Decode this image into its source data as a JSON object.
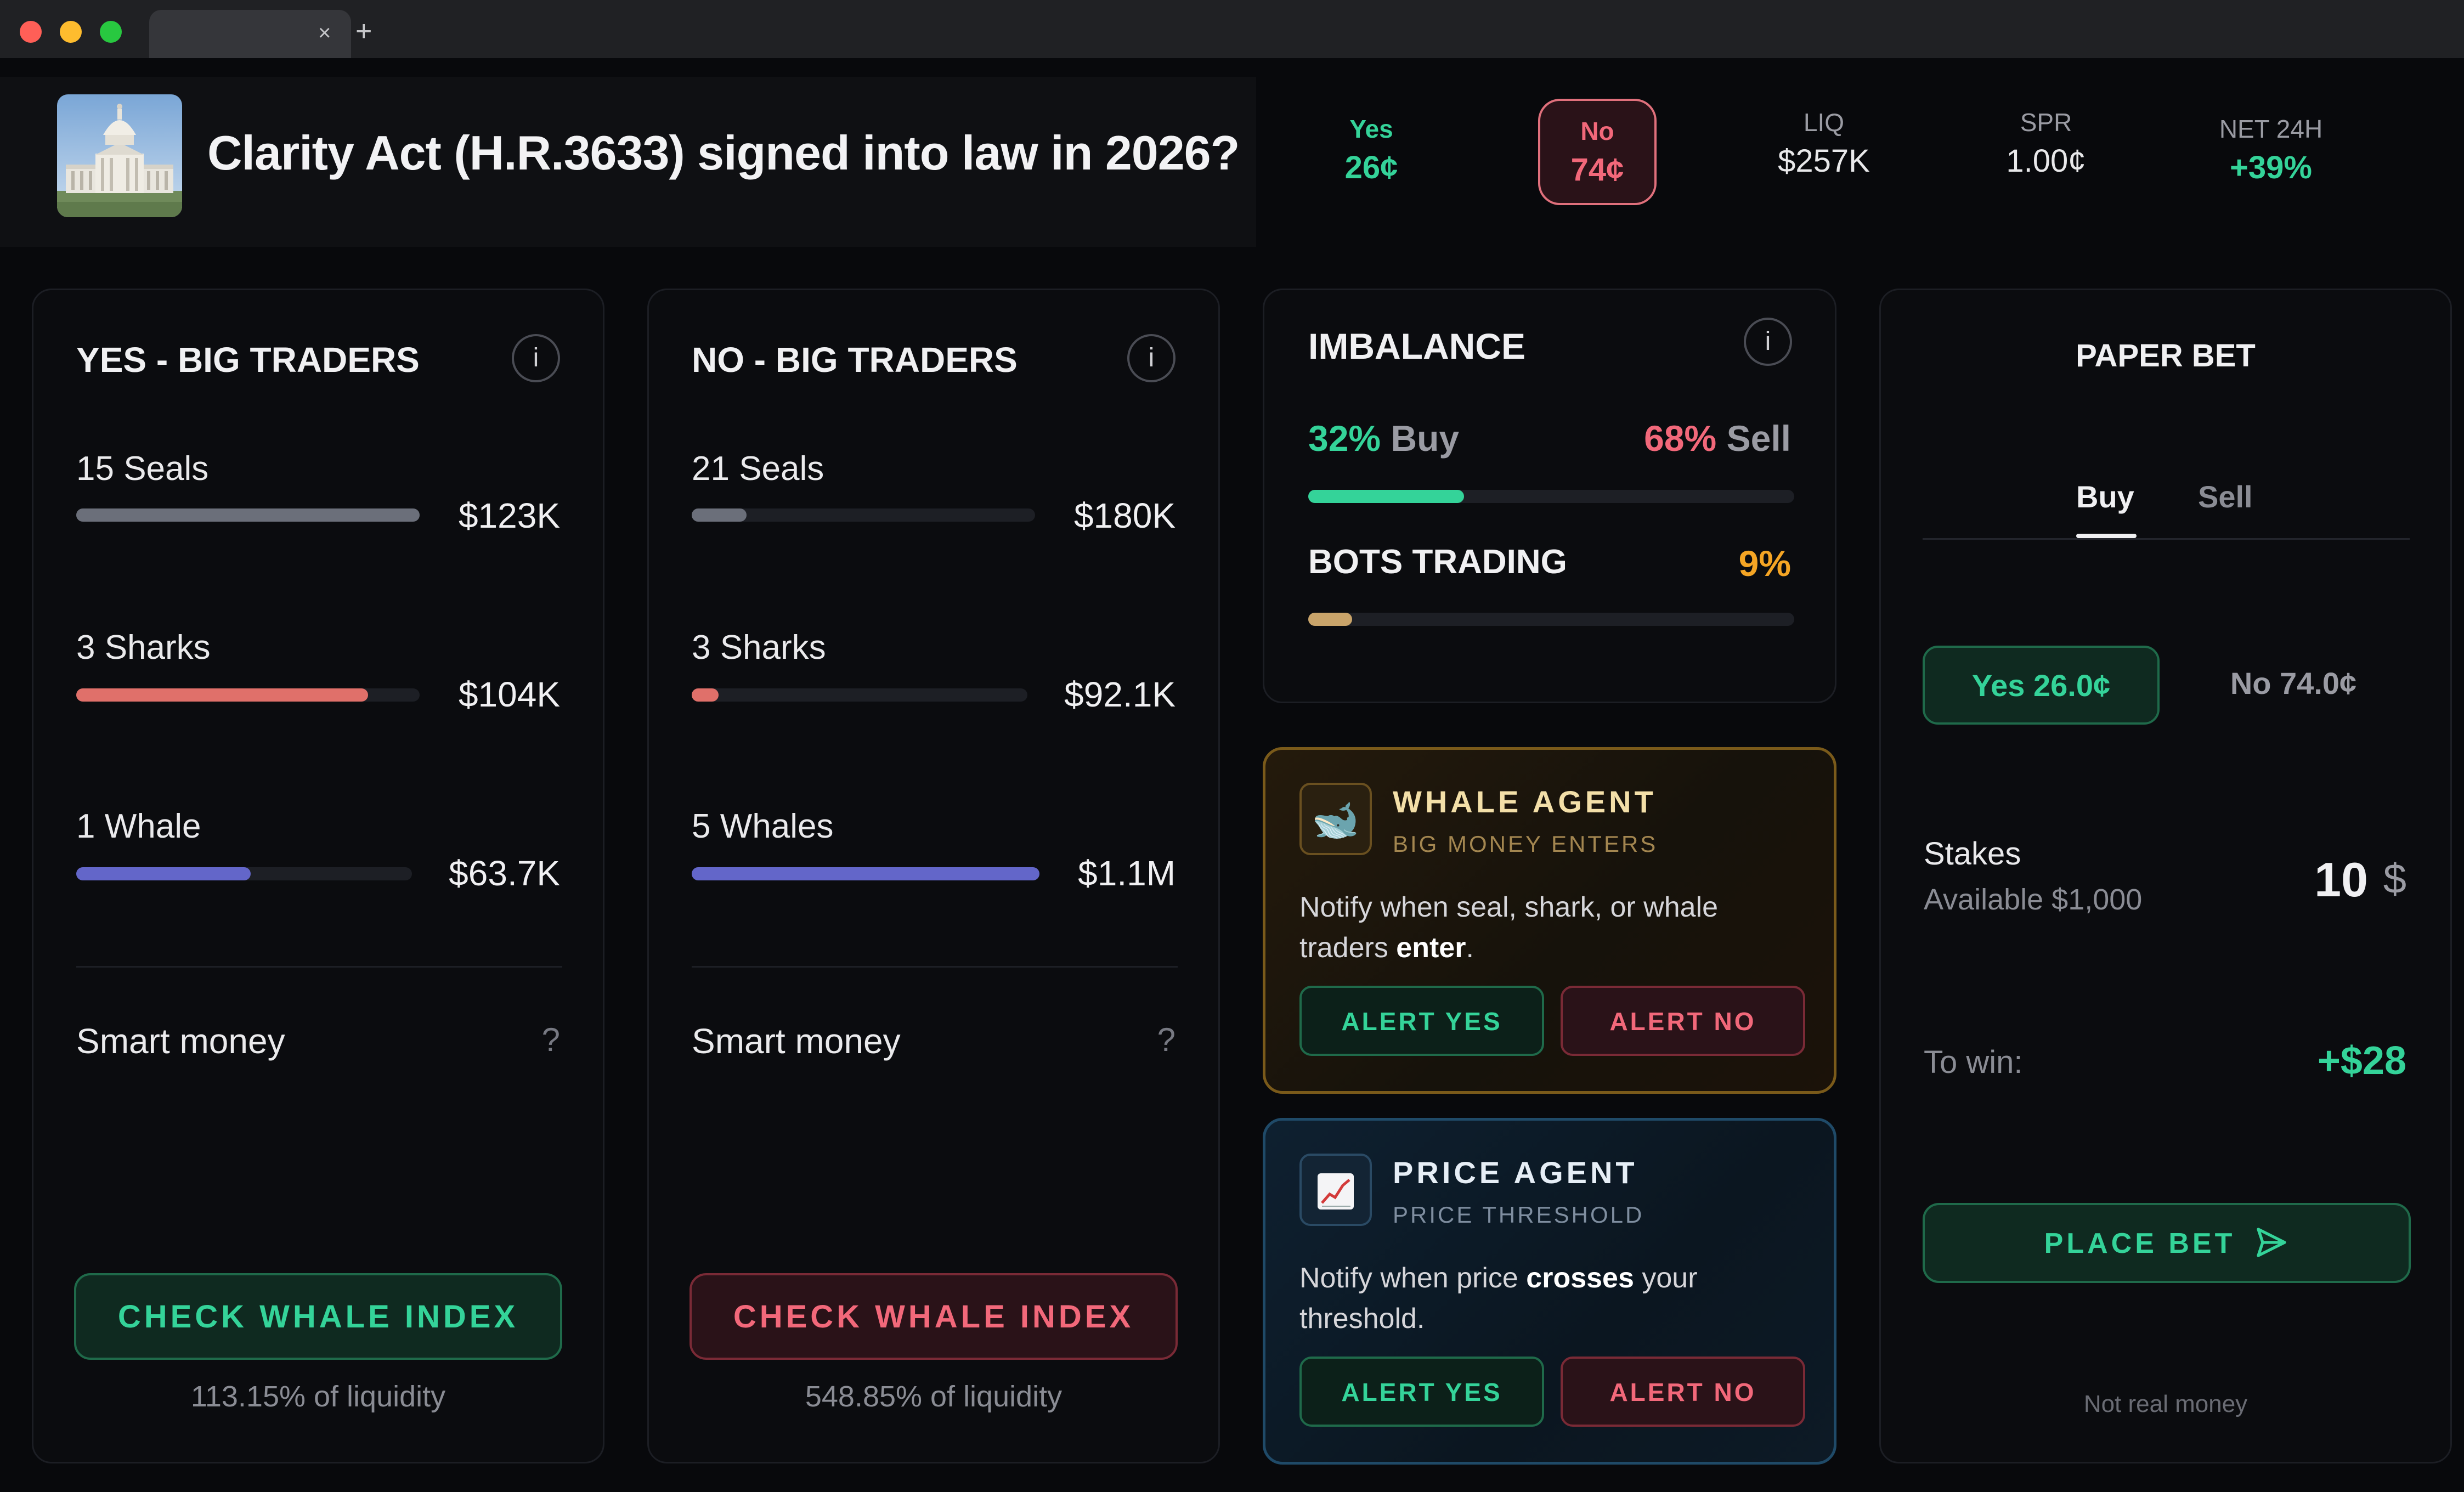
{
  "browser": {
    "tab_close": "×",
    "new_tab": "+"
  },
  "market": {
    "title": "Clarity Act (H.R.3633) signed into law in 2026?",
    "thumbnail_icon": "capitol-building-icon"
  },
  "stats": {
    "yes": {
      "label": "Yes",
      "value": "26¢"
    },
    "no": {
      "label": "No",
      "value": "74¢"
    },
    "liq": {
      "label": "LIQ",
      "value": "$257K"
    },
    "spr": {
      "label": "SPR",
      "value": "1.00¢"
    },
    "net": {
      "label": "NET 24H",
      "value": "+39%"
    }
  },
  "yes_panel": {
    "title": "YES - BIG TRADERS",
    "info": "i",
    "tiers": [
      {
        "label": "15 Seals",
        "amount": "$123K",
        "fill": 1.0,
        "color": "#6b6f7a"
      },
      {
        "label": "3 Sharks",
        "amount": "$104K",
        "fill": 0.85,
        "color": "#e0706a"
      },
      {
        "label": "1 Whale",
        "amount": "$63.7K",
        "fill": 0.52,
        "color": "#6366c9"
      }
    ],
    "smart_money": "Smart money",
    "help": "?",
    "button": "CHECK WHALE INDEX",
    "liquidity_note": "113.15% of liquidity"
  },
  "no_panel": {
    "title": "NO - BIG TRADERS",
    "info": "i",
    "tiers": [
      {
        "label": "21 Seals",
        "amount": "$180K",
        "fill": 0.16,
        "color": "#6b6f7a"
      },
      {
        "label": "3 Sharks",
        "amount": "$92.1K",
        "fill": 0.08,
        "color": "#e0706a"
      },
      {
        "label": "5 Whales",
        "amount": "$1.1M",
        "fill": 1.0,
        "color": "#6366c9"
      }
    ],
    "smart_money": "Smart money",
    "help": "?",
    "button": "CHECK WHALE INDEX",
    "liquidity_note": "548.85% of liquidity"
  },
  "imbalance": {
    "title": "IMBALANCE",
    "info": "i",
    "buy_pct": "32%",
    "buy_label": "Buy",
    "sell_pct": "68%",
    "sell_label": "Sell",
    "buy_fill": 0.32,
    "bots_title": "BOTS TRADING",
    "bots_pct": "9%",
    "bots_fill": 0.09,
    "colors": {
      "buy": "#34d399",
      "bots": "#c9a46a"
    }
  },
  "whale_agent": {
    "icon": "whale-icon",
    "name": "WHALE AGENT",
    "subtitle": "BIG MONEY ENTERS",
    "desc_pre": "Notify when seal, shark, or whale traders ",
    "desc_bold": "enter",
    "desc_post": ".",
    "alert_yes": "ALERT YES",
    "alert_no": "ALERT NO"
  },
  "price_agent": {
    "icon": "chart-icon",
    "name": "PRICE AGENT",
    "subtitle": "PRICE THRESHOLD",
    "desc_pre": "Notify when price ",
    "desc_bold": "crosses",
    "desc_post": " your threshold.",
    "alert_yes": "ALERT YES",
    "alert_no": "ALERT NO"
  },
  "paper_bet": {
    "title": "PAPER BET",
    "tabs": {
      "buy": "Buy",
      "sell": "Sell"
    },
    "outcome_yes": "Yes 26.0¢",
    "outcome_no": "No 74.0¢",
    "stakes_label": "Stakes",
    "available": "Available $1,000",
    "stake_value": "10",
    "currency": "$",
    "to_win_label": "To win:",
    "to_win_value": "+$28",
    "place_bet": "PLACE BET",
    "disclaimer": "Not real money"
  },
  "colors": {
    "accent_green": "#34d399",
    "accent_red": "#f2687a",
    "accent_amber": "#f5a524"
  }
}
